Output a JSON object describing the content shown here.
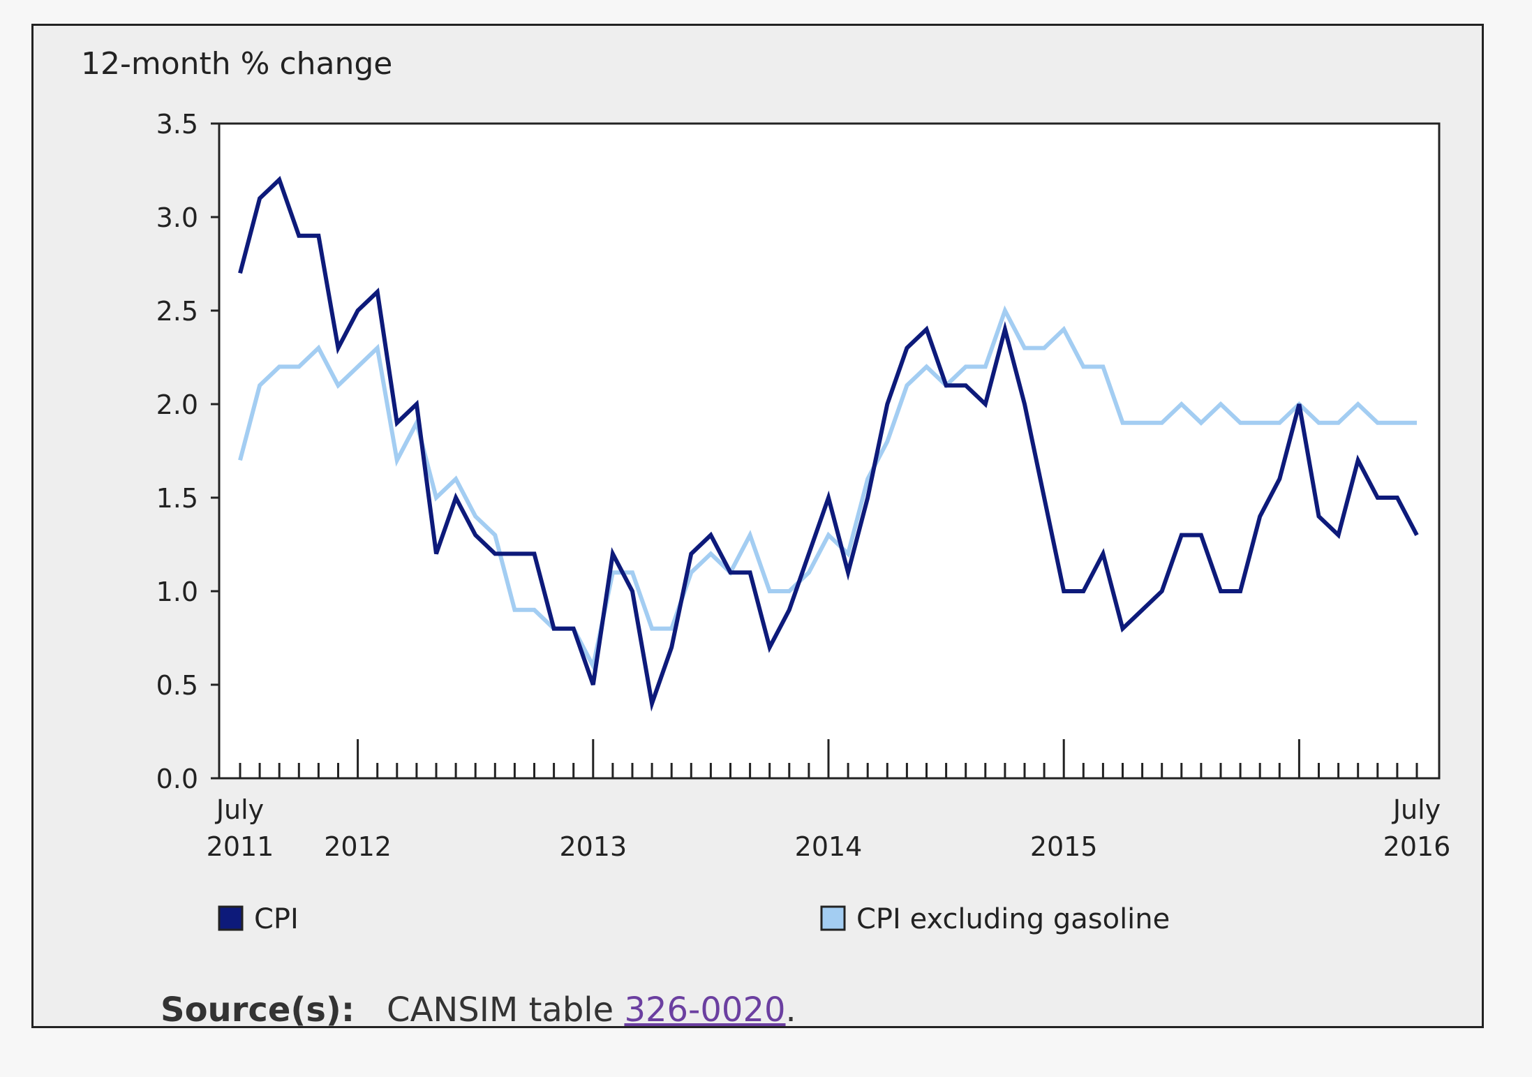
{
  "source": {
    "label": "Source(s):",
    "text": "CANSIM table ",
    "link_text": "326-0020",
    "suffix": "."
  },
  "chart_data": {
    "type": "line",
    "title": "",
    "ylabel": "12-month % change",
    "xlabel": "",
    "ylim": [
      0,
      3.5
    ],
    "yticks": [
      "0.0",
      "0.5",
      "1.0",
      "1.5",
      "2.0",
      "2.5",
      "3.0",
      "3.5"
    ],
    "x_start": "2011-07",
    "x_end": "2016-07",
    "x_tick_labels": [
      {
        "month": "2011-07",
        "line1": "July",
        "line2": "2011"
      },
      {
        "month": "2012-01",
        "line1": "",
        "line2": "2012"
      },
      {
        "month": "2013-01",
        "line1": "",
        "line2": "2013"
      },
      {
        "month": "2014-01",
        "line1": "",
        "line2": "2014"
      },
      {
        "month": "2015-01",
        "line1": "",
        "line2": "2015"
      },
      {
        "month": "2016-07",
        "line1": "July",
        "line2": "2016"
      }
    ],
    "legend_position": "bottom",
    "series": [
      {
        "name": "CPI",
        "color": "#0d1a7a",
        "values": [
          2.7,
          3.1,
          3.2,
          2.9,
          2.9,
          2.3,
          2.5,
          2.6,
          1.9,
          2.0,
          1.2,
          1.5,
          1.3,
          1.2,
          1.2,
          1.2,
          0.8,
          0.8,
          0.5,
          1.2,
          1.0,
          0.4,
          0.7,
          1.2,
          1.3,
          1.1,
          1.1,
          0.7,
          0.9,
          1.2,
          1.5,
          1.1,
          1.5,
          2.0,
          2.3,
          2.4,
          2.1,
          2.1,
          2.0,
          2.4,
          2.0,
          1.5,
          1.0,
          1.0,
          1.2,
          0.8,
          0.9,
          1.0,
          1.3,
          1.3,
          1.0,
          1.0,
          1.4,
          1.6,
          2.0,
          1.4,
          1.3,
          1.7,
          1.5,
          1.5,
          1.3
        ]
      },
      {
        "name": "CPI excluding gasoline",
        "color": "#a3cdf2",
        "values": [
          1.7,
          2.1,
          2.2,
          2.2,
          2.3,
          2.1,
          2.2,
          2.3,
          1.7,
          1.9,
          1.5,
          1.6,
          1.4,
          1.3,
          0.9,
          0.9,
          0.8,
          0.8,
          0.6,
          1.1,
          1.1,
          0.8,
          0.8,
          1.1,
          1.2,
          1.1,
          1.3,
          1.0,
          1.0,
          1.1,
          1.3,
          1.2,
          1.6,
          1.8,
          2.1,
          2.2,
          2.1,
          2.2,
          2.2,
          2.5,
          2.3,
          2.3,
          2.4,
          2.2,
          2.2,
          1.9,
          1.9,
          1.9,
          2.0,
          1.9,
          2.0,
          1.9,
          1.9,
          1.9,
          2.0,
          1.9,
          1.9,
          2.0,
          1.9,
          1.9,
          1.9
        ]
      }
    ]
  }
}
